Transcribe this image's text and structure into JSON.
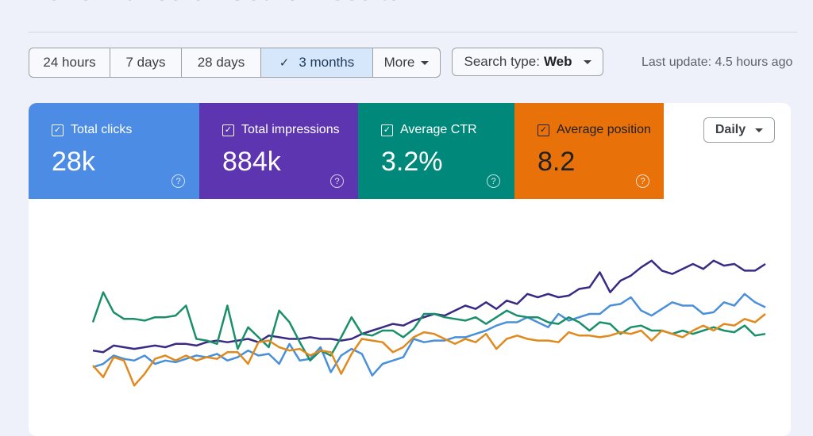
{
  "page": {
    "title": "Performance on Search results"
  },
  "toolbar": {
    "ranges": [
      "24 hours",
      "7 days",
      "28 days",
      "3 months"
    ],
    "selected_range": "3 months",
    "more_label": "More",
    "search_type_label": "Search type:",
    "search_type_value": "Web",
    "last_update": "Last update: 4.5 hours ago"
  },
  "metrics": {
    "clicks": {
      "label": "Total clicks",
      "value": "28k",
      "color": "#4c8ce5",
      "checked": true
    },
    "impressions": {
      "label": "Total impressions",
      "value": "884k",
      "color": "#5e35b1",
      "checked": true
    },
    "ctr": {
      "label": "Average CTR",
      "value": "3.2%",
      "color": "#00897b",
      "checked": true
    },
    "position": {
      "label": "Average position",
      "value": "8.2",
      "color": "#e8710a",
      "checked": true
    }
  },
  "granularity": {
    "label": "Daily"
  },
  "chart_data": {
    "type": "line",
    "title": "",
    "xlabel": "",
    "ylabel": "",
    "ylim": [
      0,
      100
    ],
    "grid": false,
    "series": [
      {
        "name": "Total impressions",
        "color": "#3b2a84",
        "values": [
          28,
          27,
          31,
          30,
          29,
          30,
          31,
          30,
          32,
          32,
          31,
          33,
          34,
          33,
          34,
          35,
          33,
          37,
          36,
          35,
          35,
          36,
          35,
          35,
          34,
          35,
          38,
          40,
          42,
          44,
          43,
          46,
          48,
          50,
          49,
          52,
          55,
          53,
          57,
          53,
          58,
          56,
          62,
          60,
          62,
          60,
          61,
          65,
          66,
          75,
          63,
          70,
          73,
          78,
          82,
          76,
          74,
          77,
          80,
          77,
          82,
          79,
          80,
          76,
          76,
          80
        ]
      },
      {
        "name": "Total clicks",
        "color": "#4a90d9",
        "values": [
          18,
          20,
          25,
          23,
          22,
          25,
          20,
          22,
          21,
          23,
          25,
          24,
          26,
          22,
          24,
          28,
          25,
          26,
          20,
          32,
          22,
          23,
          30,
          15,
          25,
          29,
          26,
          13,
          20,
          22,
          24,
          35,
          33,
          34,
          34,
          36,
          36,
          38,
          40,
          43,
          45,
          45,
          48,
          45,
          42,
          50,
          46,
          48,
          50,
          50,
          55,
          56,
          60,
          52,
          49,
          53,
          57,
          55,
          55,
          50,
          51,
          57,
          55,
          62,
          57,
          54
        ]
      },
      {
        "name": "Average CTR",
        "color": "#1a8f6a",
        "values": [
          45,
          63,
          51,
          47,
          47,
          46,
          48,
          48,
          49,
          55,
          35,
          34,
          32,
          55,
          29,
          42,
          36,
          30,
          52,
          45,
          33,
          22,
          28,
          25,
          36,
          48,
          38,
          37,
          40,
          40,
          36,
          41,
          50,
          50,
          48,
          47,
          46,
          48,
          44,
          48,
          52,
          49,
          48,
          48,
          45,
          44,
          48,
          45,
          40,
          45,
          44,
          38,
          42,
          43,
          40,
          40,
          38,
          40,
          38,
          40,
          42,
          40,
          39,
          43,
          37,
          38
        ]
      },
      {
        "name": "Average position",
        "color": "#e08a1e",
        "values": [
          19,
          12,
          24,
          22,
          7,
          14,
          23,
          25,
          22,
          25,
          22,
          24,
          23,
          27,
          27,
          20,
          33,
          34,
          30,
          28,
          29,
          25,
          28,
          27,
          14,
          26,
          35,
          34,
          33,
          27,
          30,
          36,
          39,
          38,
          35,
          32,
          35,
          33,
          38,
          29,
          35,
          37,
          35,
          34,
          34,
          33,
          39,
          37,
          37,
          36,
          37,
          39,
          38,
          40,
          34,
          40,
          38,
          36,
          40,
          43,
          40,
          44,
          43,
          47,
          45,
          50
        ]
      }
    ]
  }
}
